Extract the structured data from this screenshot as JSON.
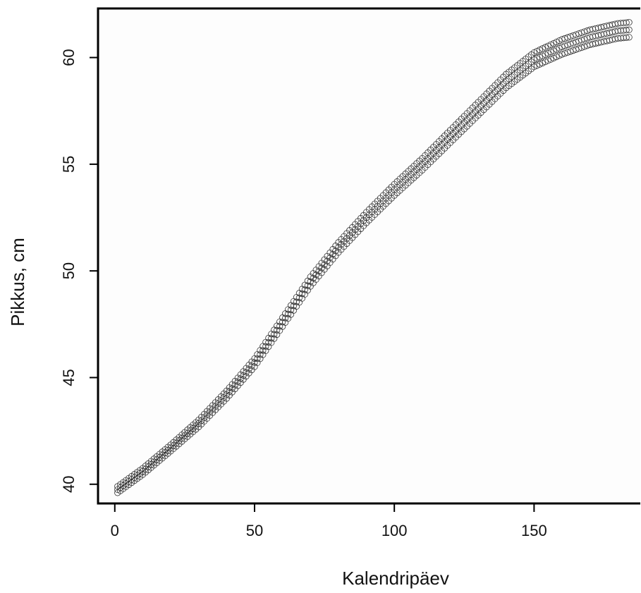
{
  "chart_data": {
    "type": "scatter",
    "title": "",
    "xlabel": "Kalendripäev",
    "ylabel": "Pikkus, cm",
    "xlim": [
      -6,
      188
    ],
    "ylim": [
      39.1,
      62.3
    ],
    "xticks": [
      0,
      50,
      100,
      150
    ],
    "yticks": [
      40,
      45,
      50,
      55,
      60
    ],
    "grid": false,
    "legend": "none",
    "marker": "open-circle",
    "colors": {
      "marker": "#333333",
      "axis": "#000000",
      "background": "#fdfdfd"
    },
    "curve_x": [
      1,
      10,
      20,
      30,
      40,
      50,
      60,
      70,
      80,
      90,
      100,
      110,
      120,
      130,
      140,
      150,
      160,
      170,
      180,
      184
    ],
    "curve_y": [
      39.75,
      40.6,
      41.7,
      42.85,
      44.2,
      45.7,
      47.6,
      49.5,
      51.1,
      52.5,
      53.8,
      55.0,
      56.3,
      57.6,
      58.9,
      59.9,
      60.5,
      60.95,
      61.25,
      61.3
    ],
    "band_offsets": [
      -0.25,
      0,
      0.25
    ],
    "x_start": 1,
    "x_end": 184,
    "x_step": 1
  }
}
